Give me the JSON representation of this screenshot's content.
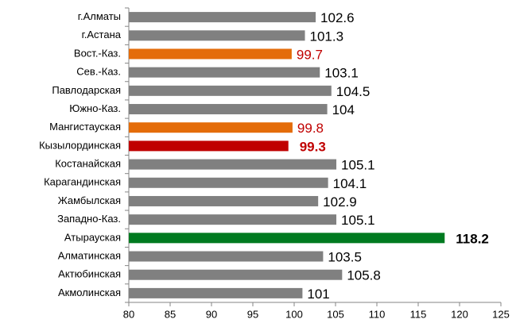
{
  "chart_data": {
    "type": "barh",
    "categories": [
      "г.Алматы",
      "г.Астана",
      "Вост.-Каз.",
      "Сев.-Каз.",
      "Павлодарская",
      "Южно-Каз.",
      "Мангистауская",
      "Кызылординская",
      "Костанайская",
      "Карагандинская",
      "Жамбылская",
      "Западно-Каз.",
      "Атырауская",
      "Алматинская",
      "Актюбинская",
      "Акмолинская"
    ],
    "values": [
      102.6,
      101.3,
      99.7,
      103.1,
      104.5,
      104,
      99.8,
      99.3,
      105.1,
      104.1,
      102.9,
      105.1,
      118.2,
      103.5,
      105.8,
      101
    ],
    "colors": [
      "#808080",
      "#808080",
      "#e46c0a",
      "#808080",
      "#808080",
      "#808080",
      "#e46c0a",
      "#c00000",
      "#808080",
      "#808080",
      "#808080",
      "#808080",
      "#007a20",
      "#808080",
      "#808080",
      "#808080"
    ],
    "label_colors": [
      "#000000",
      "#000000",
      "#c00000",
      "#000000",
      "#000000",
      "#000000",
      "#c00000",
      "#c00000",
      "#000000",
      "#000000",
      "#000000",
      "#000000",
      "#000000",
      "#000000",
      "#000000",
      "#000000"
    ],
    "label_bold": [
      false,
      false,
      false,
      false,
      false,
      false,
      false,
      true,
      false,
      false,
      false,
      false,
      true,
      false,
      false,
      false
    ],
    "xlim": [
      80,
      125
    ],
    "xticks": [
      80,
      85,
      90,
      95,
      100,
      105,
      110,
      115,
      120,
      125
    ],
    "grid": false
  }
}
